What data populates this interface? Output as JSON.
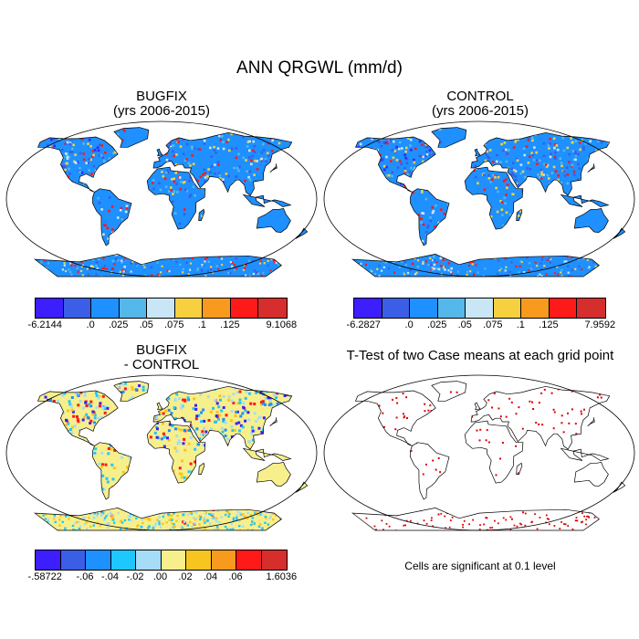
{
  "title": "ANN QRGWL (mm/d)",
  "panels": {
    "bugfix": {
      "title_line1": "BUGFIX",
      "title_line2": "(yrs 2006-2015)"
    },
    "control": {
      "title_line1": "CONTROL",
      "title_line2": "(yrs 2006-2015)"
    },
    "diff": {
      "title_line1": "BUGFIX",
      "title_line2": "- CONTROL"
    },
    "ttest": {
      "title": "T-Test of two Case means at each grid point",
      "note": "Cells are significant at 0.1 level"
    }
  },
  "colorbars": {
    "bugfix": {
      "colors": [
        "#3c1eff",
        "#3a5ee6",
        "#1e90ff",
        "#54b8ea",
        "#c8e6f5",
        "#f7d040",
        "#f79a1e",
        "#ff1a1a",
        "#d62d2d"
      ],
      "labels": [
        "-6.2144",
        ".0",
        ".025",
        ".05",
        ".075",
        ".1",
        ".125",
        "9.1068"
      ]
    },
    "control": {
      "colors": [
        "#3c1eff",
        "#3a5ee6",
        "#1e90ff",
        "#54b8ea",
        "#c8e6f5",
        "#f7d040",
        "#f79a1e",
        "#ff1a1a",
        "#d62d2d"
      ],
      "labels": [
        "-6.2827",
        ".0",
        ".025",
        ".05",
        ".075",
        ".1",
        ".125",
        "7.9592"
      ]
    },
    "diff": {
      "colors": [
        "#3c1eff",
        "#3a5ee6",
        "#1e90ff",
        "#1ec8ff",
        "#a6dcf5",
        "#f7ef8c",
        "#f7c520",
        "#f79a1e",
        "#ff1a1a",
        "#d62d2d"
      ],
      "labels": [
        "-.58722",
        "-.06",
        "-.04",
        "-.02",
        ".00",
        ".02",
        ".04",
        ".06",
        "1.6036"
      ]
    }
  },
  "map_colors": {
    "ocean": "#ffffff",
    "land_bugfix": "#1e90ff",
    "land_control": "#1e90ff",
    "land_diff": "#f7ef8c",
    "land_ttest": "#ffffff",
    "significant": "#e00000"
  }
}
